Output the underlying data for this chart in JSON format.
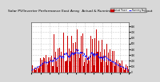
{
  "title": "Solar PV/Inverter Performance East Array  Actual & Running Average Power Output",
  "title_fontsize": 3.2,
  "background_color": "#d8d8d8",
  "plot_bg_color": "#ffffff",
  "bar_color": "#cc0000",
  "line_color": "#0000ff",
  "grid_color": "#999999",
  "n_points": 400,
  "ylim": [
    0,
    880
  ],
  "days": 50,
  "seed": 1234
}
